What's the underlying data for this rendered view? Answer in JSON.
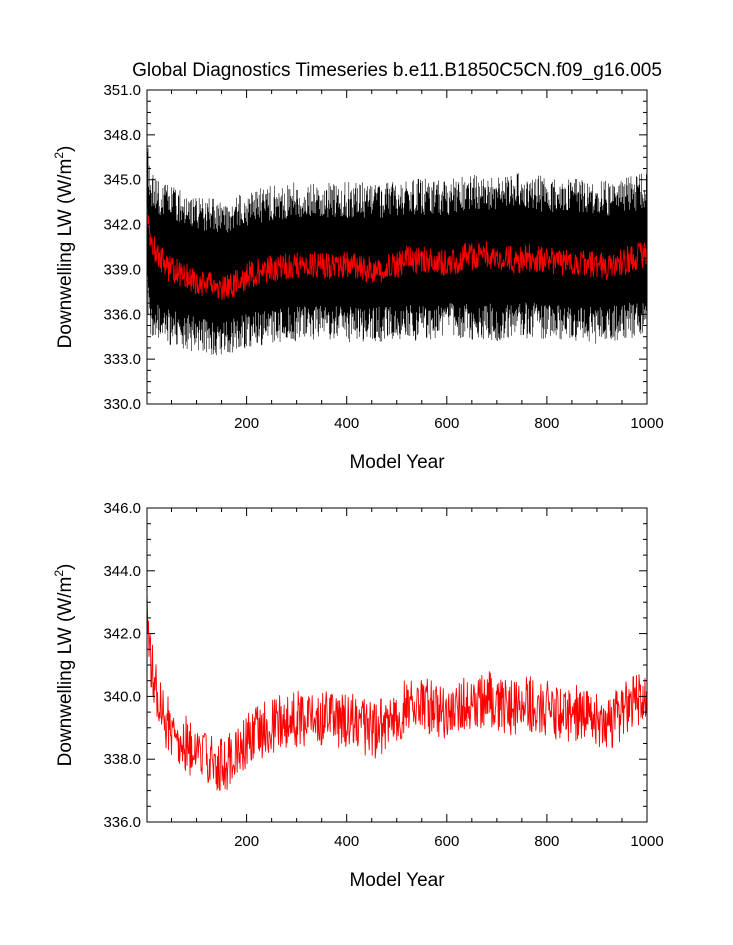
{
  "title": "Global Diagnostics Timeseries b.e11.B1850C5CN.f09_g16.005",
  "colors": {
    "monthly": "#000000",
    "annual": "#ff0000",
    "axis": "#000000"
  },
  "chart_data": [
    {
      "type": "line",
      "title": "Global Diagnostics Timeseries b.e11.B1850C5CN.f09_g16.005",
      "xlabel": "Model Year",
      "ylabel_main": "Downwelling LW (W/m",
      "ylabel_sup": "2",
      "ylabel_end": ")",
      "xlim": [
        1,
        1000
      ],
      "ylim": [
        330.0,
        351.0
      ],
      "xticks": [
        200,
        400,
        600,
        800,
        1000
      ],
      "yticks": [
        "330.0",
        "333.0",
        "336.0",
        "339.0",
        "342.0",
        "345.0",
        "348.0",
        "351.0"
      ],
      "series": [
        {
          "kind": "monthly",
          "note_envelope": true,
          "envelope_x": [
            1,
            5,
            10,
            20,
            40,
            60,
            80,
            100,
            120,
            140,
            160,
            180,
            200,
            250,
            300,
            350,
            400,
            450,
            500,
            550,
            600,
            650,
            700,
            750,
            800,
            850,
            900,
            950,
            1000
          ],
          "envelope_low": [
            336.5,
            335.0,
            334.5,
            334.3,
            334.0,
            333.8,
            333.6,
            333.4,
            333.3,
            333.2,
            333.3,
            333.4,
            333.7,
            334.0,
            334.1,
            334.2,
            334.1,
            334.0,
            334.3,
            334.2,
            334.4,
            334.3,
            334.2,
            334.4,
            334.3,
            334.2,
            334.0,
            334.3,
            334.5
          ],
          "envelope_high": [
            348.0,
            346.5,
            345.5,
            345.0,
            344.7,
            344.5,
            344.3,
            344.0,
            343.8,
            343.7,
            343.8,
            344.0,
            344.3,
            344.6,
            344.9,
            344.8,
            344.9,
            344.8,
            345.0,
            345.1,
            345.0,
            345.4,
            345.3,
            345.5,
            345.2,
            345.1,
            344.9,
            345.2,
            345.5
          ]
        },
        {
          "kind": "annual",
          "x": [
            1,
            3,
            6,
            10,
            15,
            20,
            30,
            40,
            50,
            60,
            70,
            80,
            90,
            100,
            110,
            120,
            130,
            140,
            150,
            160,
            170,
            180,
            190,
            200,
            220,
            240,
            260,
            280,
            300,
            320,
            340,
            360,
            380,
            400,
            420,
            440,
            460,
            480,
            500,
            520,
            540,
            560,
            580,
            600,
            620,
            640,
            660,
            680,
            700,
            720,
            740,
            760,
            780,
            800,
            820,
            840,
            860,
            880,
            900,
            920,
            940,
            960,
            980,
            1000
          ],
          "y": [
            343.3,
            342.0,
            341.6,
            341.0,
            340.4,
            340.1,
            339.6,
            339.2,
            339.0,
            338.8,
            338.7,
            338.5,
            338.3,
            338.2,
            338.1,
            338.0,
            337.9,
            337.8,
            337.8,
            337.9,
            338.0,
            338.1,
            338.3,
            338.6,
            338.8,
            339.0,
            339.1,
            339.2,
            339.3,
            339.2,
            339.3,
            339.3,
            339.2,
            339.3,
            339.2,
            339.0,
            338.9,
            339.2,
            339.3,
            339.8,
            339.6,
            339.7,
            339.5,
            339.4,
            339.6,
            339.9,
            339.8,
            340.0,
            339.8,
            339.7,
            339.6,
            339.8,
            339.7,
            339.6,
            339.5,
            339.4,
            339.5,
            339.4,
            339.3,
            339.2,
            339.3,
            339.6,
            339.9,
            340.0
          ]
        }
      ]
    },
    {
      "type": "line",
      "xlabel": "Model Year",
      "ylabel_main": "Downwelling LW (W/m",
      "ylabel_sup": "2",
      "ylabel_end": ")",
      "xlim": [
        1,
        1000
      ],
      "ylim": [
        336.0,
        346.0
      ],
      "xticks": [
        200,
        400,
        600,
        800,
        1000
      ],
      "yticks": [
        "336.0",
        "338.0",
        "340.0",
        "342.0",
        "344.0",
        "346.0"
      ],
      "series": [
        {
          "kind": "annual",
          "x": [
            1,
            3,
            6,
            10,
            15,
            20,
            30,
            40,
            50,
            60,
            70,
            80,
            90,
            100,
            110,
            120,
            130,
            140,
            150,
            160,
            170,
            180,
            190,
            200,
            220,
            240,
            260,
            280,
            300,
            320,
            340,
            360,
            380,
            400,
            420,
            440,
            460,
            480,
            500,
            520,
            540,
            560,
            580,
            600,
            620,
            640,
            660,
            680,
            700,
            720,
            740,
            760,
            780,
            800,
            820,
            840,
            860,
            880,
            900,
            920,
            940,
            960,
            980,
            1000
          ],
          "y": [
            343.3,
            342.0,
            341.6,
            341.0,
            340.4,
            340.1,
            339.6,
            339.2,
            339.0,
            338.8,
            338.7,
            338.5,
            338.3,
            338.2,
            338.1,
            338.0,
            337.9,
            337.8,
            337.8,
            337.9,
            338.0,
            338.1,
            338.3,
            338.6,
            338.8,
            339.0,
            339.1,
            339.2,
            339.3,
            339.2,
            339.3,
            339.3,
            339.2,
            339.3,
            339.2,
            339.0,
            338.9,
            339.2,
            339.3,
            339.8,
            339.6,
            339.7,
            339.5,
            339.4,
            339.6,
            339.9,
            339.8,
            340.0,
            339.8,
            339.7,
            339.6,
            339.8,
            339.7,
            339.6,
            339.5,
            339.4,
            339.5,
            339.4,
            339.3,
            339.2,
            339.3,
            339.6,
            339.9,
            340.0
          ]
        }
      ]
    }
  ]
}
